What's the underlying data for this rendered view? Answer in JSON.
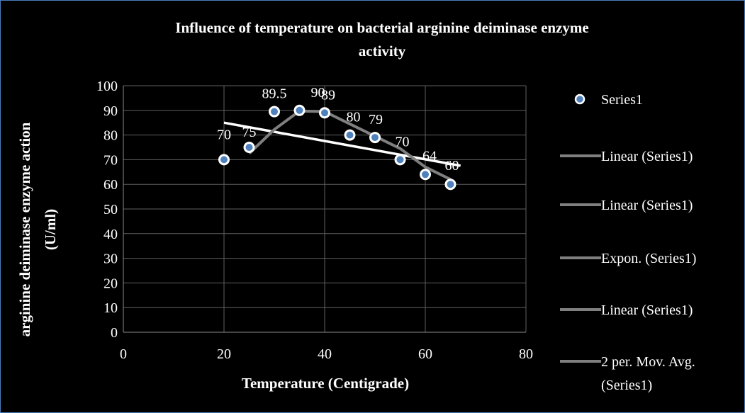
{
  "chart_data": {
    "type": "scatter",
    "title": [
      "Influence of temperature on bacterial arginine deiminase enzyme",
      "activity"
    ],
    "xlabel": "Temperature (Centigrade)",
    "ylabel": [
      "arginine deiminase enzyme action",
      "(U/ml)"
    ],
    "xlim": [
      0,
      80
    ],
    "ylim": [
      0,
      100
    ],
    "x_ticks": [
      0,
      20,
      40,
      60,
      80
    ],
    "y_ticks": [
      0,
      10,
      20,
      30,
      40,
      50,
      60,
      70,
      80,
      90,
      100
    ],
    "grid": "vertical and horizontal major",
    "series": [
      {
        "name": "Series1",
        "x": [
          20,
          25,
          30,
          35,
          40,
          45,
          50,
          55,
          60,
          65
        ],
        "y": [
          70,
          75,
          89.5,
          90,
          89,
          80,
          79,
          70,
          64,
          60
        ],
        "labels": [
          "70",
          "75",
          "89.5",
          "90",
          "89",
          "80",
          "79",
          "70",
          "64",
          "60"
        ]
      }
    ],
    "trendlines": [
      {
        "legend": "Linear (Series1)",
        "type": "linear",
        "color": "#7f7f7f"
      },
      {
        "legend": "Linear (Series1)",
        "type": "linear",
        "color": "#7f7f7f"
      },
      {
        "legend": "Expon. (Series1)",
        "type": "exponential",
        "color": "#7f7f7f"
      },
      {
        "legend": "Linear (Series1)",
        "type": "linear",
        "color": "#ffffff"
      },
      {
        "legend": "2 per. Mov. Avg. (Series1)",
        "type": "moving-average",
        "period": 2,
        "color": "#7f7f7f"
      }
    ],
    "legend_position": "right",
    "colors": {
      "marker_fill": "#4f81bd",
      "marker_stroke": "#ffffff",
      "background": "#000000",
      "text": "#ffffff",
      "trend_gray": "#7f7f7f"
    }
  },
  "legend": {
    "items": [
      "Series1",
      "Linear (Series1)",
      "Linear (Series1)",
      "Expon. (Series1)",
      "Linear (Series1)",
      "2 per. Mov. Avg.",
      "(Series1)"
    ]
  }
}
